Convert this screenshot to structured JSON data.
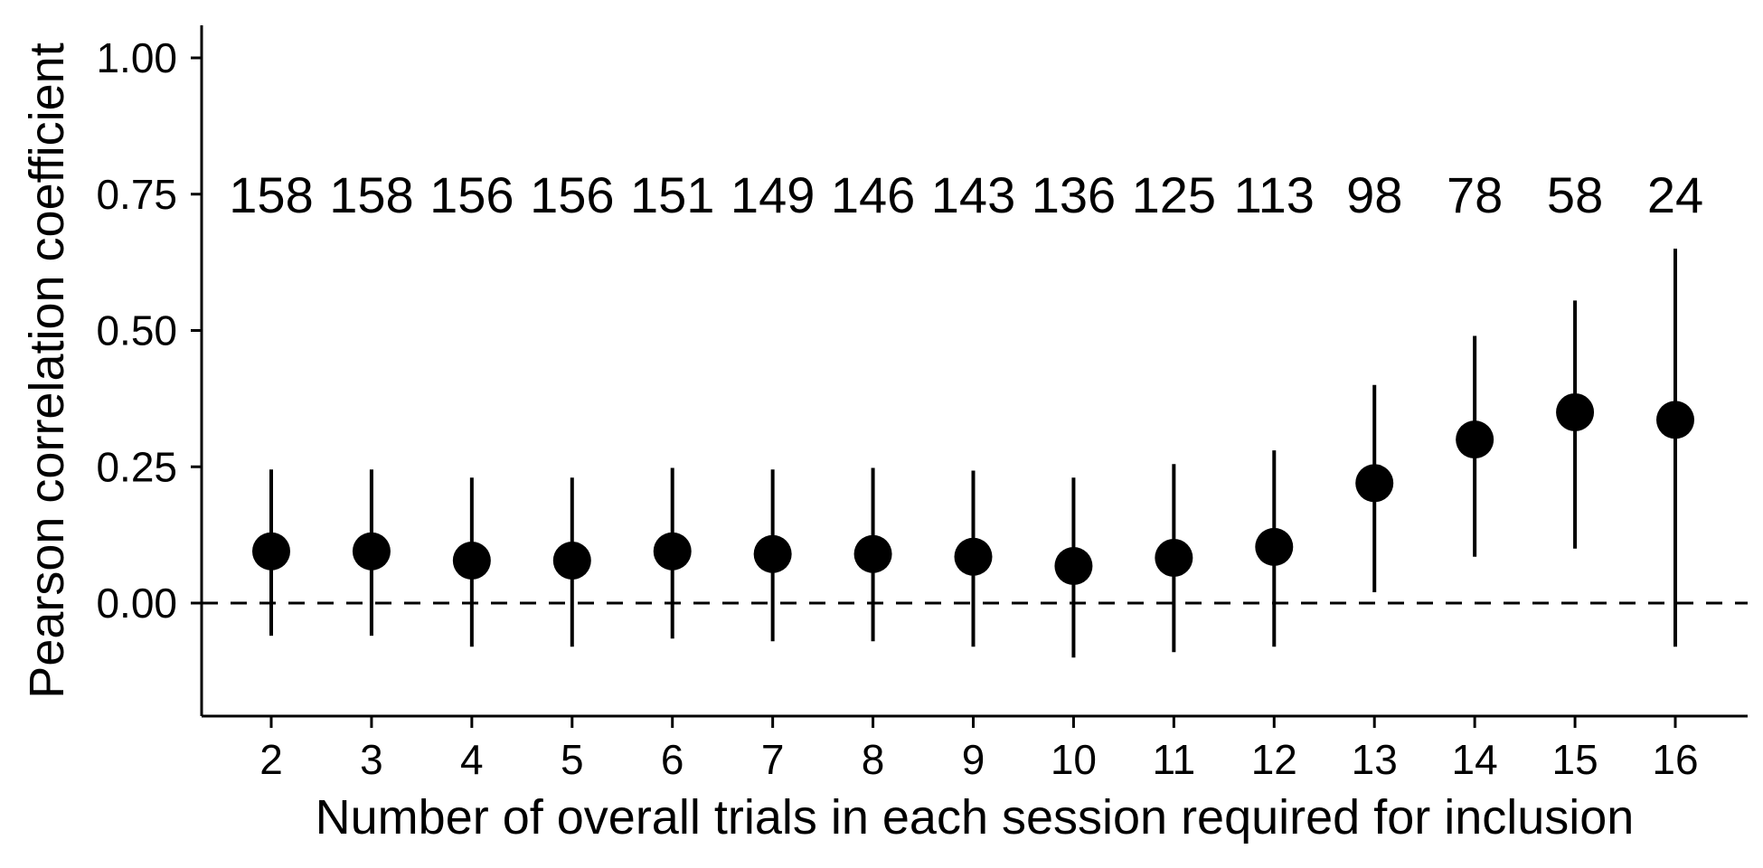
{
  "chart_data": {
    "type": "scatter",
    "title": "",
    "xlabel": "Number of overall trials in each session required for inclusion",
    "ylabel": "Pearson correlation coefficient",
    "ylim": [
      -0.2,
      1.05
    ],
    "yticks": [
      {
        "value": 0.0,
        "label": "0.00"
      },
      {
        "value": 0.25,
        "label": "0.25"
      },
      {
        "value": 0.5,
        "label": "0.50"
      },
      {
        "value": 0.75,
        "label": "0.75"
      },
      {
        "value": 1.0,
        "label": "1.00"
      }
    ],
    "reference_line": {
      "y": 0,
      "style": "dashed"
    },
    "grid": false,
    "legend": "none",
    "points": [
      {
        "x": 2,
        "y": 0.095,
        "low": -0.06,
        "high": 0.245,
        "n": "158"
      },
      {
        "x": 3,
        "y": 0.095,
        "low": -0.06,
        "high": 0.245,
        "n": "158"
      },
      {
        "x": 4,
        "y": 0.078,
        "low": -0.08,
        "high": 0.23,
        "n": "156"
      },
      {
        "x": 5,
        "y": 0.078,
        "low": -0.08,
        "high": 0.23,
        "n": "156"
      },
      {
        "x": 6,
        "y": 0.095,
        "low": -0.065,
        "high": 0.248,
        "n": "151"
      },
      {
        "x": 7,
        "y": 0.09,
        "low": -0.07,
        "high": 0.245,
        "n": "149"
      },
      {
        "x": 8,
        "y": 0.09,
        "low": -0.07,
        "high": 0.248,
        "n": "146"
      },
      {
        "x": 9,
        "y": 0.085,
        "low": -0.08,
        "high": 0.243,
        "n": "143"
      },
      {
        "x": 10,
        "y": 0.068,
        "low": -0.1,
        "high": 0.23,
        "n": "136"
      },
      {
        "x": 11,
        "y": 0.083,
        "low": -0.09,
        "high": 0.255,
        "n": "125"
      },
      {
        "x": 12,
        "y": 0.103,
        "low": -0.08,
        "high": 0.28,
        "n": "113"
      },
      {
        "x": 13,
        "y": 0.22,
        "low": 0.02,
        "high": 0.4,
        "n": "98"
      },
      {
        "x": 14,
        "y": 0.3,
        "low": 0.085,
        "high": 0.49,
        "n": "78"
      },
      {
        "x": 15,
        "y": 0.35,
        "low": 0.1,
        "high": 0.555,
        "n": "58"
      },
      {
        "x": 16,
        "y": 0.336,
        "low": -0.08,
        "high": 0.65,
        "n": "24"
      }
    ],
    "count_label_y": 0.75,
    "marker_color": "#000000"
  }
}
